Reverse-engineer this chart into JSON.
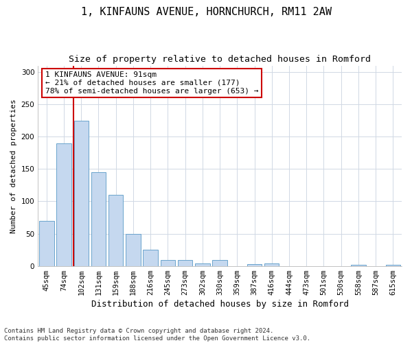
{
  "title": "1, KINFAUNS AVENUE, HORNCHURCH, RM11 2AW",
  "subtitle": "Size of property relative to detached houses in Romford",
  "xlabel": "Distribution of detached houses by size in Romford",
  "ylabel": "Number of detached properties",
  "bar_labels": [
    "45sqm",
    "74sqm",
    "102sqm",
    "131sqm",
    "159sqm",
    "188sqm",
    "216sqm",
    "245sqm",
    "273sqm",
    "302sqm",
    "330sqm",
    "359sqm",
    "387sqm",
    "416sqm",
    "444sqm",
    "473sqm",
    "501sqm",
    "530sqm",
    "558sqm",
    "587sqm",
    "615sqm"
  ],
  "bar_values": [
    70,
    190,
    225,
    145,
    110,
    50,
    25,
    9,
    9,
    4,
    9,
    0,
    3,
    4,
    0,
    0,
    0,
    0,
    2,
    0,
    2
  ],
  "bar_color": "#c5d8ef",
  "bar_edgecolor": "#6aa3cc",
  "red_line_x": 1.57,
  "annotation_text": "1 KINFAUNS AVENUE: 91sqm\n← 21% of detached houses are smaller (177)\n78% of semi-detached houses are larger (653) →",
  "annotation_box_color": "#ffffff",
  "annotation_box_edgecolor": "#cc0000",
  "red_line_color": "#cc0000",
  "grid_color": "#d0d8e4",
  "ylim": [
    0,
    310
  ],
  "yticks": [
    0,
    50,
    100,
    150,
    200,
    250,
    300
  ],
  "footer": "Contains HM Land Registry data © Crown copyright and database right 2024.\nContains public sector information licensed under the Open Government Licence v3.0.",
  "title_fontsize": 11,
  "subtitle_fontsize": 9.5,
  "xlabel_fontsize": 9,
  "ylabel_fontsize": 8,
  "tick_fontsize": 7.5,
  "annotation_fontsize": 8,
  "footer_fontsize": 6.5
}
